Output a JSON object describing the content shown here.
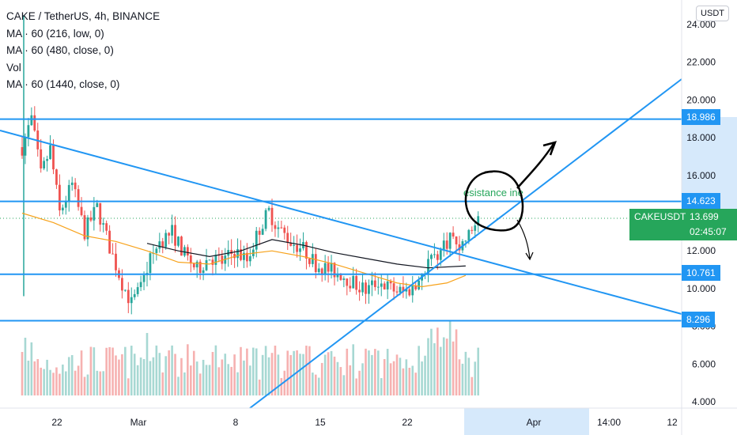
{
  "legend": {
    "title": "CAKE / TetherUS, 4h, BINANCE",
    "indicators": [
      "MA · 60 (216, low, 0)",
      "MA · 60 (480, close, 0)",
      "Vol",
      "MA · 60 (1440, close, 0)"
    ]
  },
  "currency": "USDT",
  "price_labels": [
    "18.986",
    "14.623",
    "10.761",
    "8.296"
  ],
  "ticker": {
    "symbol": "CAKEUSDT",
    "price": "13.699",
    "countdown": "02:45:07"
  },
  "annotation_text": "esistance  ine",
  "colors": {
    "up": "#26a69a",
    "down": "#ef5350",
    "trend_line": "#2196f3",
    "ma_orange": "#f7a21b",
    "ma_black": "#131722",
    "annotation_green": "#26a65b",
    "ticker_bg": "#26a65b"
  },
  "chart_data": {
    "type": "candlestick",
    "title": "CAKE / TetherUS, 4h, BINANCE",
    "y_ticks": [
      "24.000",
      "22.000",
      "20.000",
      "18.000",
      "16.000",
      "12.000",
      "10.000",
      "8.000",
      "6.000",
      "4.000"
    ],
    "x_ticks": [
      "22",
      "Mar",
      "8",
      "15",
      "22",
      "Apr",
      "14:00",
      "12"
    ],
    "ylim": [
      3.5,
      24.5
    ],
    "horizontal_levels": [
      18.986,
      14.623,
      10.761,
      8.296
    ],
    "last_price": 13.699,
    "price_path": [
      [
        0,
        17.5
      ],
      [
        3,
        19.0
      ],
      [
        6,
        16.0
      ],
      [
        9,
        17.4
      ],
      [
        12,
        14.0
      ],
      [
        16,
        15.5
      ],
      [
        20,
        13.0
      ],
      [
        24,
        14.3
      ],
      [
        28,
        12.2
      ],
      [
        32,
        10.3
      ],
      [
        35,
        9.2
      ],
      [
        38,
        10.0
      ],
      [
        41,
        11.5
      ],
      [
        44,
        12.5
      ],
      [
        48,
        13.0
      ],
      [
        52,
        11.8
      ],
      [
        56,
        11.0
      ],
      [
        60,
        11.7
      ],
      [
        64,
        11.4
      ],
      [
        68,
        12.0
      ],
      [
        72,
        11.5
      ],
      [
        76,
        13.2
      ],
      [
        79,
        14.1
      ],
      [
        82,
        13.2
      ],
      [
        86,
        12.5
      ],
      [
        90,
        12.1
      ],
      [
        94,
        11.3
      ],
      [
        98,
        11.0
      ],
      [
        102,
        10.8
      ],
      [
        106,
        10.3
      ],
      [
        110,
        9.9
      ],
      [
        114,
        10.4
      ],
      [
        118,
        10.0
      ],
      [
        122,
        9.8
      ],
      [
        126,
        10.1
      ],
      [
        130,
        11.5
      ],
      [
        134,
        12.0
      ],
      [
        137,
        12.8
      ],
      [
        140,
        12.2
      ],
      [
        143,
        12.8
      ],
      [
        146,
        13.8
      ]
    ],
    "ma_orange": [
      [
        0,
        14.0
      ],
      [
        10,
        13.5
      ],
      [
        20,
        12.8
      ],
      [
        30,
        12.5
      ],
      [
        40,
        12.0
      ],
      [
        50,
        11.4
      ],
      [
        60,
        11.3
      ],
      [
        70,
        11.8
      ],
      [
        80,
        12.0
      ],
      [
        90,
        11.7
      ],
      [
        100,
        11.3
      ],
      [
        110,
        10.8
      ],
      [
        120,
        10.3
      ],
      [
        128,
        10.1
      ],
      [
        136,
        10.3
      ],
      [
        142,
        10.7
      ]
    ],
    "ma_black": [
      [
        40,
        12.4
      ],
      [
        50,
        12.0
      ],
      [
        60,
        11.7
      ],
      [
        70,
        12.0
      ],
      [
        80,
        12.6
      ],
      [
        90,
        12.3
      ],
      [
        100,
        11.9
      ],
      [
        110,
        11.6
      ],
      [
        120,
        11.3
      ],
      [
        130,
        11.1
      ],
      [
        142,
        11.2
      ]
    ],
    "volume": {
      "min": 0,
      "max": 1,
      "bars": 146
    }
  }
}
